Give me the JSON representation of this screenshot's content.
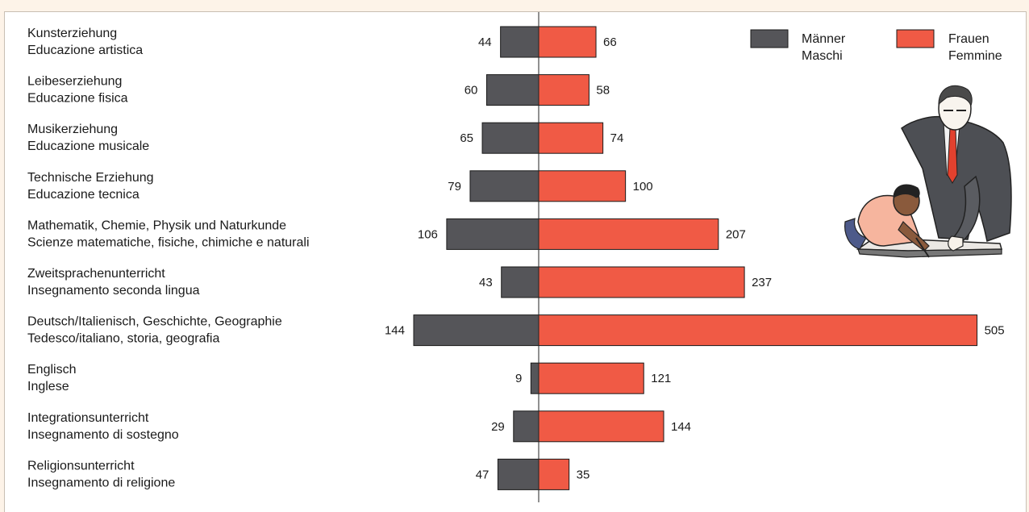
{
  "chart_data": {
    "type": "bar",
    "orientation": "horizontal-diverging",
    "categories": [
      [
        "Kunsterziehung",
        "Educazione artistica"
      ],
      [
        "Leibeserziehung",
        "Educazione fisica"
      ],
      [
        "Musikerziehung",
        "Educazione musicale"
      ],
      [
        "Technische Erziehung",
        "Educazione tecnica"
      ],
      [
        "Mathematik, Chemie, Physik und Naturkunde",
        "Scienze matematiche, fisiche, chimiche e naturali"
      ],
      [
        "Zweitsprachenunterricht",
        "Insegnamento seconda lingua"
      ],
      [
        "Deutsch/Italienisch, Geschichte, Geographie",
        "Tedesco/italiano, storia, geografia"
      ],
      [
        "Englisch",
        "Inglese"
      ],
      [
        "Integrationsunterricht",
        "Insegnamento di sostegno"
      ],
      [
        "Religionsunterricht",
        "Insegnamento di religione"
      ]
    ],
    "series": [
      {
        "name": [
          "Männer",
          "Maschi"
        ],
        "color": "#555559",
        "side": "left",
        "values": [
          44,
          60,
          65,
          79,
          106,
          43,
          144,
          9,
          29,
          47
        ]
      },
      {
        "name": [
          "Frauen",
          "Femmine"
        ],
        "color": "#f05a45",
        "side": "right",
        "values": [
          66,
          58,
          74,
          100,
          207,
          237,
          505,
          121,
          144,
          35
        ]
      }
    ],
    "legend_position": "top-right",
    "grid": false
  },
  "illustration": {
    "subject": "teacher-and-student-clipart"
  }
}
